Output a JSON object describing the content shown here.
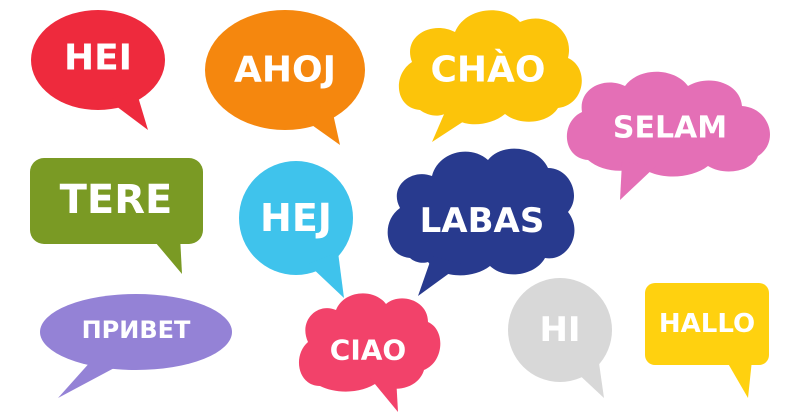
{
  "bubbles": [
    {
      "id": "hei",
      "text": "HEI",
      "color": "#EE2A3D"
    },
    {
      "id": "ahoj",
      "text": "AHOJ",
      "color": "#F5870E"
    },
    {
      "id": "chao",
      "text": "CHÀO",
      "color": "#FCC40A"
    },
    {
      "id": "selam",
      "text": "SELAM",
      "color": "#E46FB6"
    },
    {
      "id": "tere",
      "text": "TERE",
      "color": "#7A9A24"
    },
    {
      "id": "hej",
      "text": "HEJ",
      "color": "#3FC3EC"
    },
    {
      "id": "labas",
      "text": "LABAS",
      "color": "#283A8E"
    },
    {
      "id": "privet",
      "text": "ПРИВЕТ",
      "color": "#9482D6"
    },
    {
      "id": "ciao",
      "text": "CIAO",
      "color": "#F2426A"
    },
    {
      "id": "hi",
      "text": "HI",
      "color": "#D8D8D8"
    },
    {
      "id": "hallo",
      "text": "HALLO",
      "color": "#FFD10F"
    }
  ]
}
